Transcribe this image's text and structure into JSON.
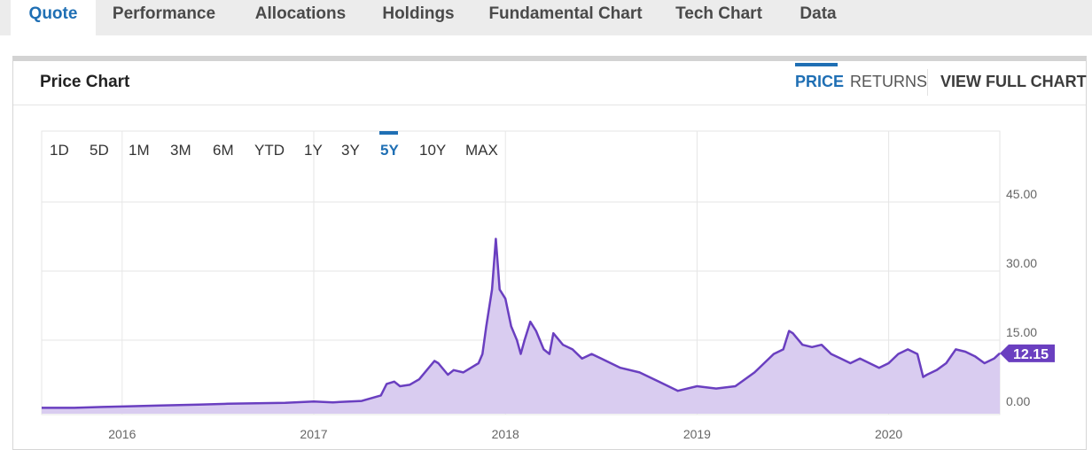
{
  "tabs": [
    {
      "label": "Quote",
      "active": true
    },
    {
      "label": "Performance"
    },
    {
      "label": "Allocations"
    },
    {
      "label": "Holdings"
    },
    {
      "label": "Fundamental Chart"
    },
    {
      "label": "Tech Chart"
    },
    {
      "label": "Data"
    }
  ],
  "card": {
    "title": "Price Chart",
    "modes": {
      "price": "PRICE",
      "returns": "RETURNS",
      "active": "PRICE"
    },
    "full_chart_label": "VIEW FULL CHART"
  },
  "ranges": {
    "items": [
      "1D",
      "5D",
      "1M",
      "3M",
      "6M",
      "YTD",
      "1Y",
      "3Y",
      "5Y",
      "10Y",
      "MAX"
    ],
    "active": "5Y"
  },
  "colors": {
    "accent": "#1f6fb4",
    "series": "#6a3fc0",
    "fill": "#d9ccf0"
  },
  "chart_data": {
    "type": "area",
    "yticks": [
      "45.00",
      "30.00",
      "15.00",
      "0.00"
    ],
    "ylim": [
      0,
      45
    ],
    "xticks": [
      "2016",
      "2017",
      "2018",
      "2019",
      "2020"
    ],
    "xlim": [
      2015.58,
      2020.58
    ],
    "last_value": "12.15",
    "grid": true,
    "series": [
      {
        "x": [
          2015.58,
          2015.75,
          2015.9,
          2016.0,
          2016.2,
          2016.4,
          2016.55,
          2016.7,
          2016.85,
          2017.0,
          2017.1,
          2017.25,
          2017.35,
          2017.38,
          2017.42,
          2017.45,
          2017.5,
          2017.55,
          2017.6,
          2017.63,
          2017.65,
          2017.7,
          2017.73,
          2017.78,
          2017.82,
          2017.86,
          2017.88,
          2017.9,
          2017.93,
          2017.95,
          2017.97,
          2018.0,
          2018.03,
          2018.06,
          2018.08,
          2018.1,
          2018.13,
          2018.16,
          2018.18,
          2018.2,
          2018.23,
          2018.25,
          2018.3,
          2018.35,
          2018.4,
          2018.45,
          2018.5,
          2018.55,
          2018.6,
          2018.7,
          2018.8,
          2018.85,
          2018.9,
          2019.0,
          2019.1,
          2019.2,
          2019.3,
          2019.35,
          2019.4,
          2019.45,
          2019.48,
          2019.5,
          2019.55,
          2019.6,
          2019.65,
          2019.7,
          2019.75,
          2019.8,
          2019.85,
          2019.9,
          2019.95,
          2020.0,
          2020.05,
          2020.1,
          2020.15,
          2020.18,
          2020.2,
          2020.25,
          2020.3,
          2020.35,
          2020.4,
          2020.45,
          2020.5,
          2020.55,
          2020.58
        ],
        "y": [
          0.3,
          0.3,
          0.5,
          0.6,
          0.8,
          1.0,
          1.2,
          1.3,
          1.4,
          1.7,
          1.5,
          1.8,
          3.0,
          5.5,
          6.0,
          5.0,
          5.3,
          6.5,
          9.0,
          10.5,
          10.0,
          7.5,
          8.5,
          8.0,
          9.0,
          10.0,
          12.0,
          18.0,
          26.0,
          37.0,
          26.0,
          24.0,
          18.0,
          15.0,
          12.0,
          15.0,
          19.0,
          17.0,
          15.0,
          13.0,
          12.0,
          16.5,
          14.0,
          13.0,
          11.0,
          12.0,
          11.0,
          10.0,
          9.0,
          8.0,
          6.0,
          5.0,
          4.0,
          5.0,
          4.5,
          5.0,
          8.0,
          10.0,
          12.0,
          13.0,
          17.0,
          16.5,
          14.0,
          13.5,
          14.0,
          12.0,
          11.0,
          10.0,
          11.0,
          10.0,
          9.0,
          10.0,
          12.0,
          13.0,
          12.0,
          7.0,
          7.5,
          8.5,
          10.0,
          13.0,
          12.5,
          11.5,
          10.0,
          11.0,
          12.15
        ]
      }
    ]
  }
}
